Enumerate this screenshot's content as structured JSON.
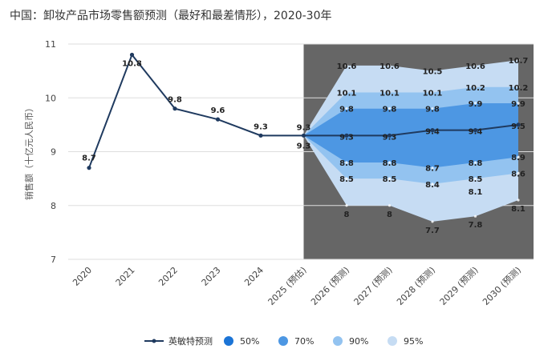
{
  "chart_data": {
    "type": "line",
    "title": "中国：卸妆产品市场零售额预测（最好和最差情形），2020-30年",
    "ylabel": "销售额（十亿元人民币）",
    "xlabel": "",
    "ylim": [
      7,
      11
    ],
    "yticks": [
      7,
      8,
      9,
      10,
      11
    ],
    "grid": true,
    "legend_position": "bottom",
    "categories": [
      "2020",
      "2021",
      "2022",
      "2023",
      "2024",
      "2025 (预估)",
      "2026 (预测)",
      "2027 (预测)",
      "2028 (预测)",
      "2029 (预测)",
      "2030 (预测)"
    ],
    "forecast_start_index": 5,
    "forecast_region_color": "#666666",
    "series": [
      {
        "name": "英敏特预测",
        "color": "#1f3a5f",
        "values": [
          8.7,
          10.8,
          9.8,
          9.6,
          9.3,
          9.3,
          9.3,
          9.3,
          9.4,
          9.4,
          9.5
        ],
        "labels": [
          "8.7",
          "10.8",
          "9.8",
          "9.6",
          "9.3",
          "9.3",
          "9.3",
          "9.3",
          "9.4",
          "9.4",
          "9.5"
        ]
      }
    ],
    "bands": [
      {
        "name": "95%",
        "color": "#c6dcf3",
        "upper": [
          9.3,
          10.6,
          10.6,
          10.5,
          10.6,
          10.7
        ],
        "lower": [
          9.3,
          8.0,
          8.0,
          7.7,
          7.8,
          8.1
        ],
        "upper_labels": [
          "10.6",
          "10.6",
          "10.5",
          "10.6",
          "10.7"
        ],
        "lower_labels": [
          "8",
          "8",
          "7.7",
          "7.8",
          "8.1"
        ]
      },
      {
        "name": "90%",
        "color": "#93c3f0",
        "upper": [
          9.3,
          10.1,
          10.1,
          10.1,
          10.2,
          10.2
        ],
        "lower": [
          9.3,
          8.5,
          8.5,
          8.4,
          8.5,
          8.6
        ],
        "upper_labels": [
          "10.1",
          "10.1",
          "10.1",
          "10.2",
          "10.2"
        ],
        "lower_labels": [
          "8.5",
          "8.5",
          "8.4",
          "8.5",
          "8.6"
        ]
      },
      {
        "name": "70%",
        "color": "#4d97e3",
        "upper": [
          9.3,
          9.8,
          9.8,
          9.8,
          9.9,
          9.9
        ],
        "lower": [
          9.3,
          8.8,
          8.8,
          8.7,
          8.8,
          8.9
        ],
        "upper_labels": [
          "9.8",
          "9.8",
          "9.8",
          "9.9",
          "9.9"
        ],
        "lower_labels": [
          "8.8",
          "8.8",
          "8.7",
          "8.8",
          "8.9"
        ]
      },
      {
        "name": "50%",
        "color": "#1b74d6",
        "upper": [
          9.3,
          9.3,
          9.3,
          9.4,
          9.4,
          9.5
        ],
        "lower": [
          9.3,
          9.3,
          9.3,
          9.4,
          9.4,
          9.5
        ],
        "upper_labels": [],
        "lower_labels": []
      }
    ],
    "extra_labels": [
      {
        "index": 5,
        "value": 9.3,
        "text": "9.3",
        "placement": "above"
      },
      {
        "index": 5,
        "value": 9.3,
        "text": "9.3",
        "placement": "below"
      },
      {
        "index": 9,
        "value": 8.1,
        "text": "8.1",
        "placement": "above"
      }
    ],
    "legend": [
      {
        "name": "英敏特预测",
        "kind": "line",
        "color": "#1f3a5f"
      },
      {
        "name": "50%",
        "kind": "dot",
        "color": "#1b74d6"
      },
      {
        "name": "70%",
        "kind": "dot",
        "color": "#4d97e3"
      },
      {
        "name": "90%",
        "kind": "dot",
        "color": "#93c3f0"
      },
      {
        "name": "95%",
        "kind": "dot",
        "color": "#c6dcf3"
      }
    ]
  }
}
